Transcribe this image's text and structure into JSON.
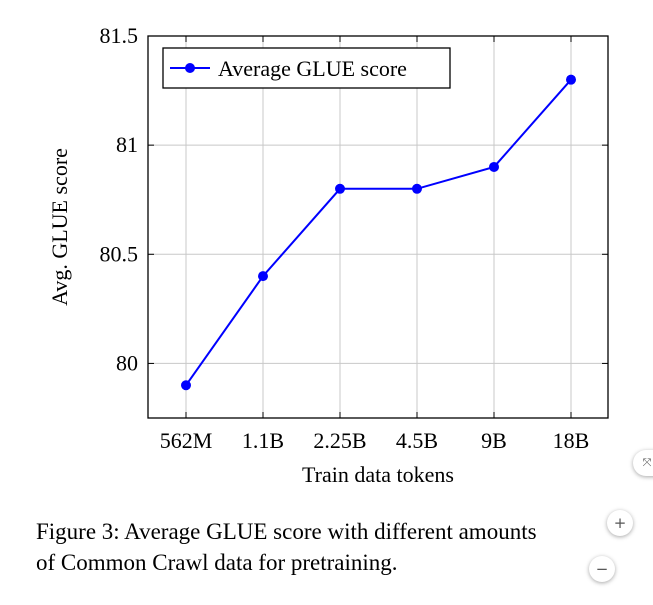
{
  "chart_data": {
    "type": "line",
    "categories": [
      "562M",
      "1.1B",
      "2.25B",
      "4.5B",
      "9B",
      "18B"
    ],
    "series": [
      {
        "name": "Average GLUE score",
        "values": [
          79.9,
          80.4,
          80.8,
          80.8,
          80.9,
          81.3
        ],
        "color": "#0000ff"
      }
    ],
    "xlabel": "Train data tokens",
    "ylabel": "Avg. GLUE score",
    "ylim": [
      79.75,
      81.5
    ],
    "yticks": [
      "80",
      "80.5",
      "81",
      "81.5"
    ],
    "grid": true,
    "legend": "top-left"
  },
  "caption": {
    "line1": "Figure 3: Average GLUE score with different amounts",
    "line2": "of Common Crawl data for pretraining."
  },
  "viewer_controls": {
    "fit_icon": "fit-to-page-icon",
    "zoom_in_label": "+",
    "zoom_out_label": "−"
  }
}
